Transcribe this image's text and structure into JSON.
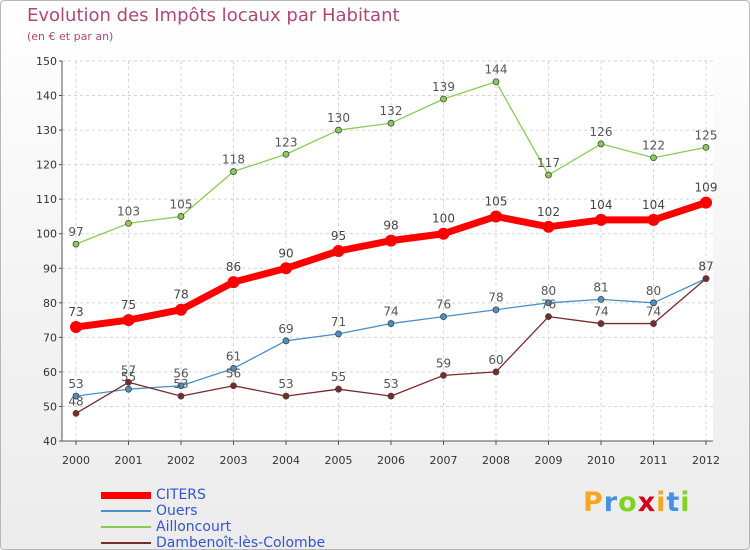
{
  "chart_data": {
    "type": "line",
    "title": "Evolution des Impôts locaux par Habitant",
    "subtitle": "(en € et par an)",
    "x": [
      "2000",
      "2001",
      "2002",
      "2003",
      "2004",
      "2005",
      "2006",
      "2007",
      "2008",
      "2009",
      "2010",
      "2011",
      "2012"
    ],
    "yticks": [
      "40",
      "50",
      "60",
      "70",
      "80",
      "90",
      "100",
      "110",
      "120",
      "130",
      "140",
      "150"
    ],
    "ylim": [
      40,
      150
    ],
    "grid": true,
    "legend_position": "bottom-left",
    "series": [
      {
        "name": "CITERS",
        "color": "#ff0000",
        "values": [
          73,
          75,
          78,
          86,
          90,
          95,
          98,
          100,
          105,
          102,
          104,
          104,
          109
        ],
        "labels": [
          "73",
          "75",
          "78",
          "86",
          "90",
          "95",
          "98",
          "100",
          "105",
          "102",
          "104",
          "104",
          "109"
        ]
      },
      {
        "name": "Ouers",
        "color": "#4a90c8",
        "values": [
          53,
          55,
          56,
          61,
          69,
          71,
          74,
          76,
          78,
          80,
          81,
          80,
          87
        ],
        "labels": [
          "53",
          "55",
          "56",
          "61",
          "69",
          "71",
          "74",
          "76",
          "78",
          "80",
          "81",
          "80",
          "87"
        ]
      },
      {
        "name": "Ailloncourt",
        "color": "#88cc55",
        "values": [
          97,
          103,
          105,
          118,
          123,
          130,
          132,
          139,
          144,
          117,
          126,
          122,
          125
        ],
        "labels": [
          "97",
          "103",
          "105",
          "118",
          "123",
          "130",
          "132",
          "139",
          "144",
          "117",
          "126",
          "122",
          "125"
        ]
      },
      {
        "name": "Dambenoît-lès-Colombe",
        "color": "#7a2a2a",
        "values": [
          48,
          57,
          53,
          56,
          53,
          55,
          53,
          59,
          60,
          76,
          74,
          74,
          87
        ],
        "labels": [
          "48",
          "57",
          "53",
          "56",
          "53",
          "55",
          "53",
          "59",
          "60",
          "76",
          "74",
          "74",
          "87"
        ]
      }
    ]
  },
  "logo": {
    "letters": [
      "P",
      "r",
      "o",
      "x",
      "i",
      "t",
      "i"
    ],
    "colors": [
      "#f5a623",
      "#4a90e2",
      "#7ed321",
      "#d0021b",
      "#f5a623",
      "#4a90e2",
      "#7ed321"
    ]
  }
}
